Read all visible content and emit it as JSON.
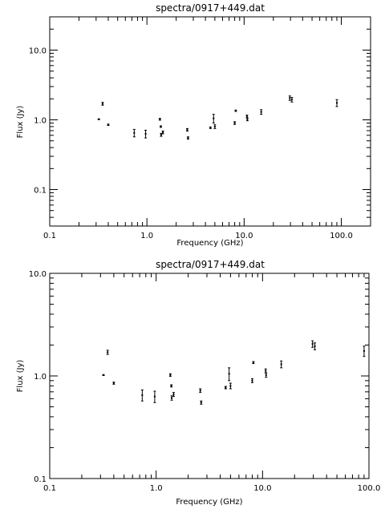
{
  "chart_data": [
    {
      "type": "scatter",
      "title": "spectra/0917+449.dat",
      "xlabel": "Frequency (GHz)",
      "ylabel": "Flux (Jy)",
      "xscale": "log",
      "yscale": "log",
      "xlim": [
        0.1,
        200
      ],
      "ylim": [
        0.03,
        30
      ],
      "xticks": [
        "0.1",
        "1.0",
        "10.0",
        "100.0"
      ],
      "yticks": [
        "0.1",
        "1.0",
        "10.0"
      ],
      "points": [
        {
          "x": 0.32,
          "y": 1.02,
          "err": 0.01
        },
        {
          "x": 0.35,
          "y": 1.7,
          "err": 0.08
        },
        {
          "x": 0.4,
          "y": 0.85,
          "err": 0.02
        },
        {
          "x": 0.74,
          "y": 0.65,
          "err": 0.08
        },
        {
          "x": 0.97,
          "y": 0.63,
          "err": 0.08
        },
        {
          "x": 1.36,
          "y": 1.02,
          "err": 0.03
        },
        {
          "x": 1.39,
          "y": 0.8,
          "err": 0.02
        },
        {
          "x": 1.4,
          "y": 0.61,
          "err": 0.03
        },
        {
          "x": 1.46,
          "y": 0.66,
          "err": 0.03
        },
        {
          "x": 2.6,
          "y": 0.72,
          "err": 0.03
        },
        {
          "x": 2.65,
          "y": 0.55,
          "err": 0.02
        },
        {
          "x": 4.5,
          "y": 0.77,
          "err": 0.02
        },
        {
          "x": 4.85,
          "y": 1.05,
          "err": 0.15
        },
        {
          "x": 5.0,
          "y": 0.8,
          "err": 0.05
        },
        {
          "x": 8.0,
          "y": 0.9,
          "err": 0.04
        },
        {
          "x": 8.2,
          "y": 1.35,
          "err": 0.03
        },
        {
          "x": 10.7,
          "y": 1.12,
          "err": 0.05
        },
        {
          "x": 10.8,
          "y": 1.02,
          "err": 0.05
        },
        {
          "x": 15.0,
          "y": 1.3,
          "err": 0.1
        },
        {
          "x": 29.5,
          "y": 2.05,
          "err": 0.15
        },
        {
          "x": 31.0,
          "y": 1.95,
          "err": 0.15
        },
        {
          "x": 90.0,
          "y": 1.75,
          "err": 0.2
        }
      ]
    },
    {
      "type": "scatter",
      "title": "spectra/0917+449.dat",
      "xlabel": "Frequency (GHz)",
      "ylabel": "Flux (Jy)",
      "xscale": "log",
      "yscale": "log",
      "xlim": [
        0.1,
        100
      ],
      "ylim": [
        0.1,
        10
      ],
      "xticks": [
        "0.1",
        "1.0",
        "10.0",
        "100.0"
      ],
      "yticks": [
        "0.1",
        "1.0",
        "10.0"
      ],
      "points": [
        {
          "x": 0.32,
          "y": 1.02,
          "err": 0.01
        },
        {
          "x": 0.35,
          "y": 1.7,
          "err": 0.08
        },
        {
          "x": 0.4,
          "y": 0.85,
          "err": 0.02
        },
        {
          "x": 0.74,
          "y": 0.65,
          "err": 0.08
        },
        {
          "x": 0.97,
          "y": 0.63,
          "err": 0.08
        },
        {
          "x": 1.36,
          "y": 1.02,
          "err": 0.03
        },
        {
          "x": 1.39,
          "y": 0.8,
          "err": 0.02
        },
        {
          "x": 1.4,
          "y": 0.61,
          "err": 0.03
        },
        {
          "x": 1.46,
          "y": 0.66,
          "err": 0.03
        },
        {
          "x": 2.6,
          "y": 0.72,
          "err": 0.03
        },
        {
          "x": 2.65,
          "y": 0.55,
          "err": 0.02
        },
        {
          "x": 4.5,
          "y": 0.77,
          "err": 0.02
        },
        {
          "x": 4.85,
          "y": 1.05,
          "err": 0.15
        },
        {
          "x": 5.0,
          "y": 0.8,
          "err": 0.05
        },
        {
          "x": 8.0,
          "y": 0.9,
          "err": 0.04
        },
        {
          "x": 8.2,
          "y": 1.35,
          "err": 0.03
        },
        {
          "x": 10.7,
          "y": 1.12,
          "err": 0.05
        },
        {
          "x": 10.8,
          "y": 1.02,
          "err": 0.05
        },
        {
          "x": 15.0,
          "y": 1.3,
          "err": 0.1
        },
        {
          "x": 29.5,
          "y": 2.05,
          "err": 0.15
        },
        {
          "x": 31.0,
          "y": 1.95,
          "err": 0.15
        },
        {
          "x": 90.0,
          "y": 1.75,
          "err": 0.2
        }
      ]
    }
  ]
}
